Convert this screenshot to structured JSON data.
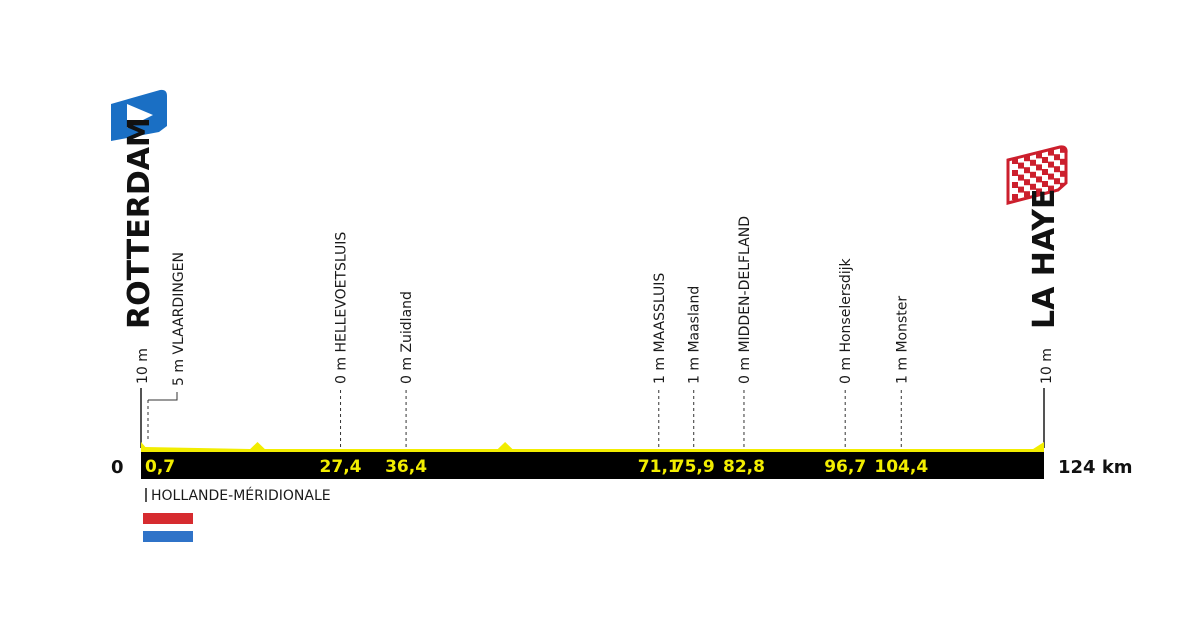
{
  "chart_data": {
    "type": "area",
    "title": "",
    "distance_unit": "km",
    "x_start_label": "0",
    "x_end_label": "124 km",
    "xlim": [
      0,
      124
    ],
    "start": {
      "name": "ROTTERDAM",
      "elevation_label": "10 m",
      "icon": "start-flag-icon"
    },
    "finish": {
      "name": "LA HAYE",
      "elevation_label": "10 m",
      "icon": "finish-checkered-flag-icon"
    },
    "waypoints": [
      {
        "km": 0.7,
        "km_label": "0,7",
        "place": "VLAARDINGEN",
        "elevation_label": "5 m"
      },
      {
        "km": 27.4,
        "km_label": "27,4",
        "place": "HELLEVOETSLUIS",
        "elevation_label": "0 m"
      },
      {
        "km": 36.4,
        "km_label": "36,4",
        "place": "Zuidland",
        "elevation_label": "0 m"
      },
      {
        "km": 71.1,
        "km_label": "71,1",
        "place": "MAASSLUIS",
        "elevation_label": "1 m"
      },
      {
        "km": 75.9,
        "km_label": "75,9",
        "place": "Maasland",
        "elevation_label": "1 m"
      },
      {
        "km": 82.8,
        "km_label": "82,8",
        "place": "MIDDEN-DELFLAND",
        "elevation_label": "0 m"
      },
      {
        "km": 96.7,
        "km_label": "96,7",
        "place": "Honselersdijk",
        "elevation_label": "0 m"
      },
      {
        "km": 104.4,
        "km_label": "104,4",
        "place": "Monster",
        "elevation_label": "1 m"
      }
    ],
    "profile_m": [
      [
        0,
        10
      ],
      [
        0.6,
        5
      ],
      [
        15,
        3
      ],
      [
        16,
        10
      ],
      [
        17,
        3
      ],
      [
        49,
        3
      ],
      [
        50,
        10
      ],
      [
        51,
        3
      ],
      [
        122.5,
        3
      ],
      [
        124,
        10
      ]
    ],
    "profile_ylim": [
      0,
      50
    ],
    "region": "HOLLANDE-MÉRIDIONALE",
    "region_flag_icon": "netherlands-flag-icon",
    "colors": {
      "profile_fill": "#f2ed00",
      "base_band": "#000000",
      "km_text": "#f2ed00",
      "start_flag": "#1a6fc4",
      "finish_flag_red": "#cc1f2d",
      "nl_red": "#d62b2f",
      "nl_blue": "#2f73c8"
    }
  }
}
